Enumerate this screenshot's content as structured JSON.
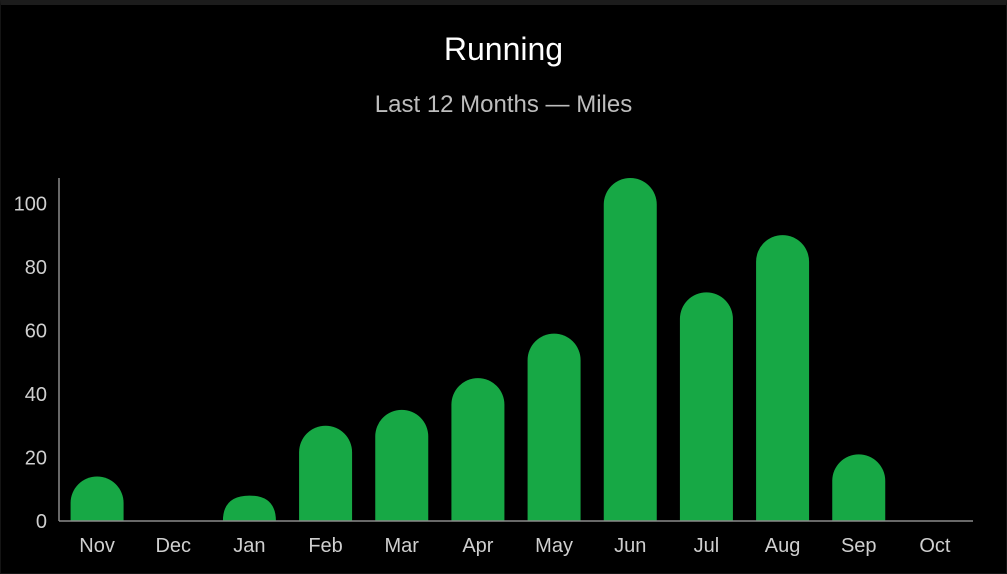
{
  "chart_data": {
    "type": "bar",
    "title": "Running",
    "subtitle": "Last 12 Months — Miles",
    "xlabel": "",
    "ylabel": "",
    "categories": [
      "Nov",
      "Dec",
      "Jan",
      "Feb",
      "Mar",
      "Apr",
      "May",
      "Jun",
      "Jul",
      "Aug",
      "Sep",
      "Oct"
    ],
    "values": [
      14,
      0,
      8,
      30,
      35,
      45,
      59,
      108,
      72,
      90,
      21,
      0
    ],
    "ylim": [
      0,
      108
    ],
    "yticks": [
      "0",
      "20",
      "40",
      "60",
      "80",
      "100"
    ],
    "grid": false,
    "legend": "none",
    "bar_color": "#17a845"
  }
}
